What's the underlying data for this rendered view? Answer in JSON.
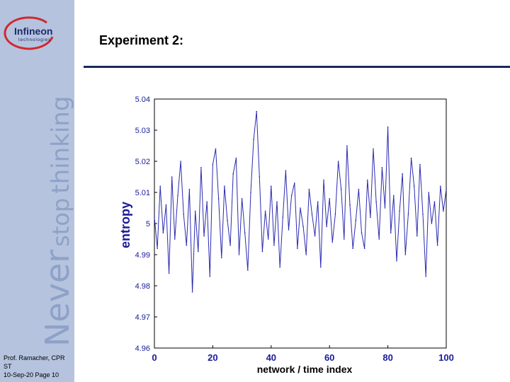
{
  "sidebar": {
    "tagline": {
      "w1": "Never",
      "w2": "stop",
      "w3": "thinking"
    },
    "logo": {
      "name": "Infineon",
      "sub": "technologies"
    },
    "footer": {
      "line1": "Prof. Ramacher, CPR ST",
      "line2": "10-Sep-20 Page 10"
    }
  },
  "slide": {
    "title": "Experiment 2:"
  },
  "colors": {
    "sidebar": "#b5c3de",
    "tagline": "#8ea2c8",
    "rule": "#1a2a5a",
    "series": "#2b2bb0"
  },
  "chart_data": {
    "type": "line",
    "xlabel": "network / time index",
    "ylabel": "entropy",
    "xlim": [
      0,
      100
    ],
    "ylim": [
      4.96,
      5.04
    ],
    "xticks": [
      "0",
      "20",
      "40",
      "60",
      "80",
      "100"
    ],
    "yticks": [
      "4.96",
      "4.97",
      "4.98",
      "4.99",
      "5",
      "5.01",
      "5.02",
      "5.03",
      "5.04"
    ],
    "grid": false,
    "series": [
      {
        "x": [
          0,
          1,
          2,
          3,
          4,
          5,
          6,
          7,
          8,
          9,
          10,
          11,
          12,
          13,
          14,
          15,
          16,
          17,
          18,
          19,
          20,
          21,
          22,
          23,
          24,
          25,
          26,
          27,
          28,
          29,
          30,
          31,
          32,
          33,
          34,
          35,
          36,
          37,
          38,
          39,
          40,
          41,
          42,
          43,
          44,
          45,
          46,
          47,
          48,
          49,
          50,
          51,
          52,
          53,
          54,
          55,
          56,
          57,
          58,
          59,
          60,
          61,
          62,
          63,
          64,
          65,
          66,
          67,
          68,
          69,
          70,
          71,
          72,
          73,
          74,
          75,
          76,
          77,
          78,
          79,
          80,
          81,
          82,
          83,
          84,
          85,
          86,
          87,
          88,
          89,
          90,
          91,
          92,
          93,
          94,
          95,
          96,
          97,
          98,
          99,
          100
        ],
        "values": [
          5.002,
          4.992,
          5.012,
          4.997,
          5.006,
          4.984,
          5.015,
          4.995,
          5.009,
          5.02,
          5.003,
          4.993,
          5.011,
          4.978,
          5.004,
          4.991,
          5.018,
          4.996,
          5.007,
          4.983,
          5.019,
          5.024,
          5.008,
          4.989,
          5.012,
          5.001,
          4.993,
          5.016,
          5.021,
          4.99,
          5.008,
          4.997,
          4.985,
          5.01,
          5.027,
          5.036,
          5.015,
          4.991,
          5.004,
          4.995,
          5.012,
          4.993,
          5.007,
          4.986,
          5.002,
          5.017,
          4.998,
          5.009,
          5.013,
          4.992,
          5.005,
          4.999,
          4.99,
          5.011,
          5.003,
          4.996,
          5.007,
          4.986,
          5.014,
          4.999,
          5.008,
          4.994,
          5.003,
          5.02,
          5.011,
          4.995,
          5.025,
          5.006,
          4.992,
          5.001,
          5.011,
          4.997,
          4.992,
          5.014,
          5.002,
          5.024,
          5.007,
          4.995,
          5.018,
          5.005,
          5.031,
          4.997,
          5.009,
          4.988,
          5.004,
          5.016,
          4.99,
          5.003,
          5.021,
          5.012,
          4.996,
          5.019,
          5.003,
          4.983,
          5.01,
          5.0,
          5.007,
          4.993,
          5.012,
          5.004,
          5.011
        ]
      }
    ]
  }
}
